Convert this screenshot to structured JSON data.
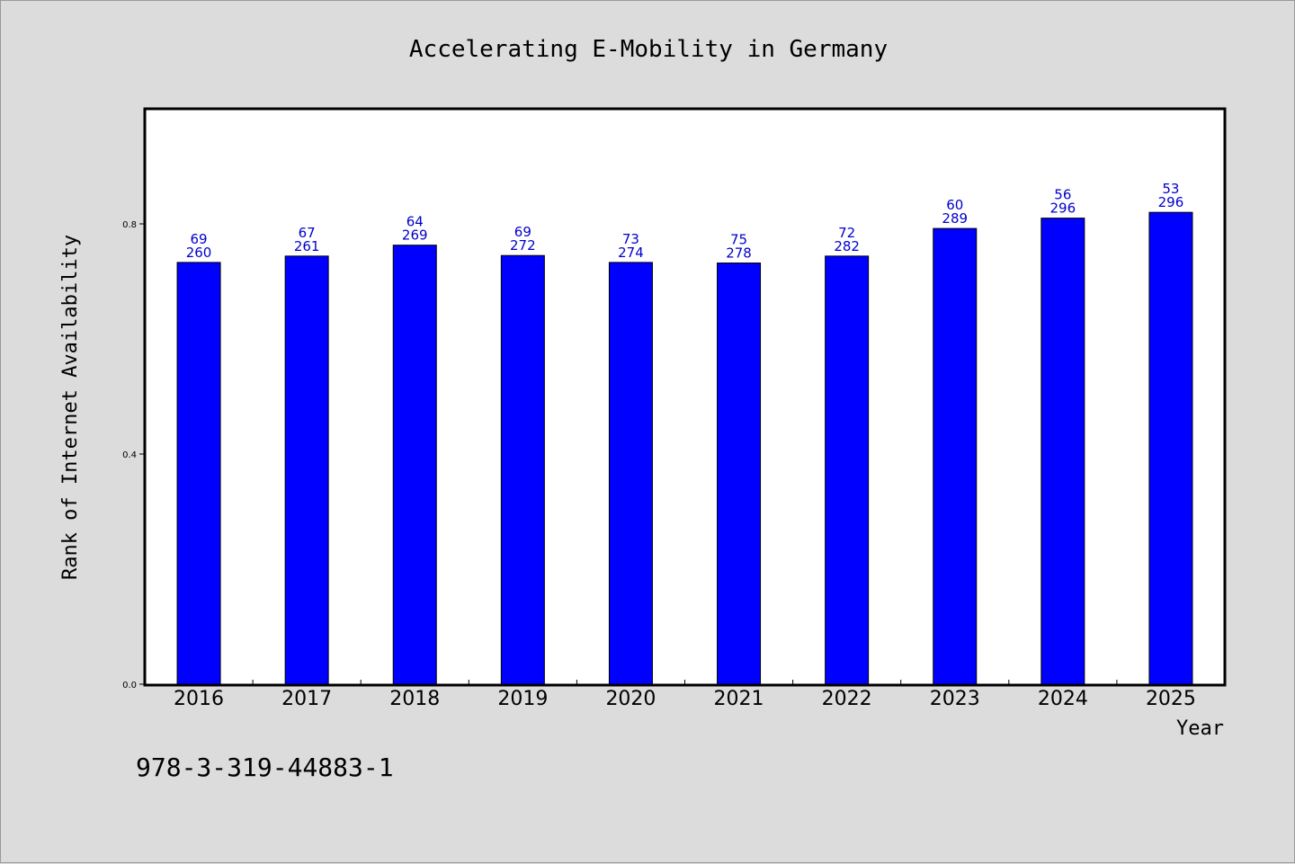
{
  "chart_data": {
    "type": "bar",
    "title": "Accelerating E-Mobility in Germany",
    "xlabel": "Year",
    "ylabel": "Rank of Internet Availability",
    "categories": [
      "2016",
      "2017",
      "2018",
      "2019",
      "2020",
      "2021",
      "2022",
      "2023",
      "2024",
      "2025"
    ],
    "values": [
      0.733,
      0.744,
      0.763,
      0.745,
      0.733,
      0.732,
      0.744,
      0.792,
      0.81,
      0.82
    ],
    "annotations_top": [
      "69",
      "67",
      "64",
      "69",
      "73",
      "75",
      "72",
      "60",
      "56",
      "53"
    ],
    "annotations_bottom": [
      "260",
      "261",
      "269",
      "272",
      "274",
      "278",
      "282",
      "289",
      "296",
      "296"
    ],
    "ylim": [
      0,
      1.0
    ],
    "yticks": [
      0.0,
      0.4,
      0.8
    ],
    "ytick_labels": [
      "0.0",
      "0.4",
      "0.8"
    ],
    "grid": false,
    "bar_color": "#0000ff",
    "label_color": "#0000cc"
  },
  "footer": "978-3-319-44883-1"
}
